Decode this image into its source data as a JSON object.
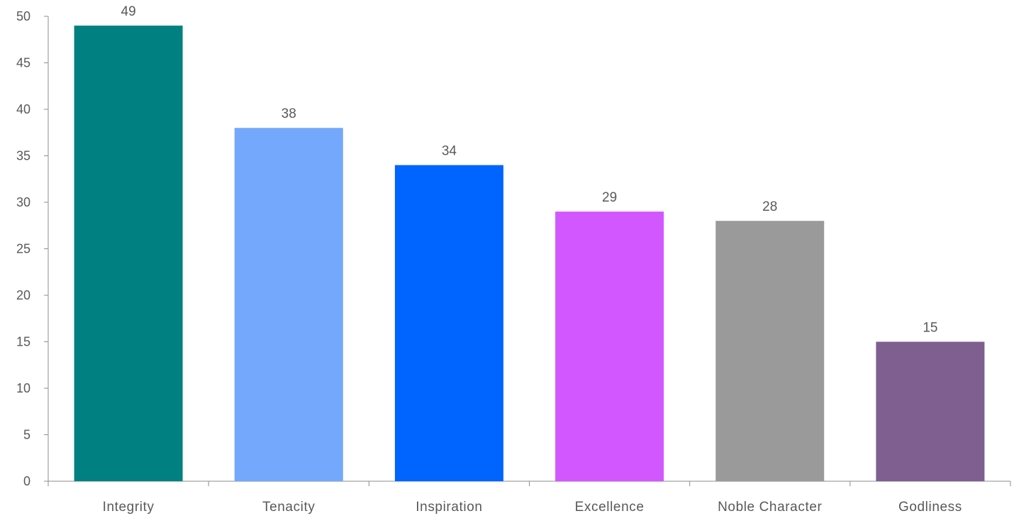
{
  "chart_data": {
    "type": "bar",
    "categories": [
      "Integrity",
      "Tenacity",
      "Inspiration",
      "Excellence",
      "Noble Character",
      "Godliness"
    ],
    "values": [
      49,
      38,
      34,
      29,
      28,
      15
    ],
    "colors": [
      "#008080",
      "#74A8FC",
      "#0064FF",
      "#D257FF",
      "#9A9A9A",
      "#7E5F90"
    ],
    "data_labels": [
      "49",
      "38",
      "34",
      "29",
      "28",
      "15"
    ],
    "y_ticks": [
      0,
      5,
      10,
      15,
      20,
      25,
      30,
      35,
      40,
      45,
      50
    ],
    "ylim": [
      0,
      50
    ],
    "axis_color": "#8c8c8c",
    "label_color": "#595959",
    "grid": false,
    "legend": "none",
    "title": "",
    "xlabel": "",
    "ylabel": ""
  }
}
